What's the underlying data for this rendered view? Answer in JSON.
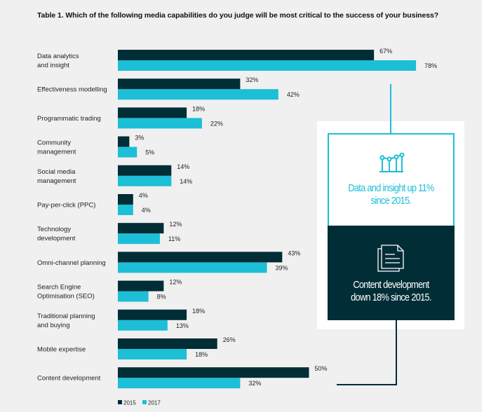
{
  "title": "Table 1. Which of the following media capabilities do you judge will be most critical to the success of your business?",
  "colors": {
    "series_2015": "#012d36",
    "series_2017": "#1cbfd6",
    "background": "#f0f0f0"
  },
  "chart_data": {
    "type": "bar",
    "orientation": "horizontal",
    "title": "Table 1. Which of the following media capabilities do you judge will be most critical to the success of your business?",
    "categories": [
      [
        "Data analytics",
        "and insight"
      ],
      [
        "Effectiveness modelling"
      ],
      [
        "Programmatic trading"
      ],
      [
        "Community",
        "management"
      ],
      [
        "Social media",
        "management"
      ],
      [
        "Pay-per-click (PPC)"
      ],
      [
        "Technology",
        "development"
      ],
      [
        "Omni-channel planning"
      ],
      [
        "Search Engine",
        "Optimisation (SEO)"
      ],
      [
        "Traditional planning",
        "and buying"
      ],
      [
        "Mobile expertise"
      ],
      [
        "Content development"
      ]
    ],
    "series": [
      {
        "name": "2015",
        "values": [
          67,
          32,
          18,
          3,
          14,
          4,
          12,
          43,
          12,
          18,
          26,
          50
        ]
      },
      {
        "name": "2017",
        "values": [
          78,
          42,
          22,
          5,
          14,
          4,
          11,
          39,
          8,
          13,
          18,
          32
        ]
      }
    ],
    "unit": "%",
    "legend_placement": "bottom-left",
    "grid": false
  },
  "callouts": [
    {
      "icon": "line-chart-icon",
      "text": [
        "Data and insight up 11%",
        "since 2015."
      ]
    },
    {
      "icon": "document-icon",
      "text": [
        "Content development",
        "down 18% since 2015."
      ]
    }
  ]
}
